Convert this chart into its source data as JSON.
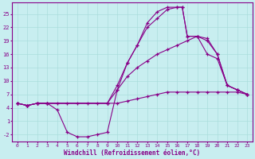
{
  "background_color": "#c8eef0",
  "line_color": "#880088",
  "xlabel": "Windchill (Refroidissement éolien,°C)",
  "xlim": [
    -0.5,
    23.5
  ],
  "ylim": [
    -3.5,
    27.5
  ],
  "xticks": [
    0,
    1,
    2,
    3,
    4,
    5,
    6,
    7,
    8,
    9,
    10,
    11,
    12,
    13,
    14,
    15,
    16,
    17,
    18,
    19,
    20,
    21,
    22,
    23
  ],
  "yticks": [
    -2,
    1,
    4,
    7,
    10,
    13,
    16,
    19,
    22,
    25
  ],
  "grid_color": "#aadddd",
  "line1_x": [
    0,
    1,
    2,
    3,
    4,
    5,
    6,
    7,
    8,
    9,
    10,
    11,
    12,
    13,
    14,
    15,
    16,
    17,
    18,
    19,
    20,
    21,
    22,
    23
  ],
  "line1_y": [
    5,
    4.5,
    5,
    5,
    5,
    5,
    5,
    5,
    5,
    5,
    5,
    5.5,
    6,
    6.5,
    7,
    7.5,
    7.5,
    7.5,
    7.5,
    7.5,
    7.5,
    7.5,
    7.5,
    7
  ],
  "line2_x": [
    0,
    1,
    2,
    3,
    9,
    10,
    11,
    12,
    13,
    14,
    15,
    16,
    17,
    18,
    19,
    20,
    21,
    22,
    23
  ],
  "line2_y": [
    5,
    4.5,
    5,
    5,
    5,
    8,
    11,
    13,
    14.5,
    16,
    17,
    18,
    19,
    20,
    19,
    16,
    9,
    8,
    7
  ],
  "line3_x": [
    0,
    1,
    2,
    3,
    9,
    10,
    11,
    12,
    13,
    14,
    15,
    16,
    16.5,
    17,
    18,
    19,
    20,
    21,
    22,
    23
  ],
  "line3_y": [
    5,
    4.5,
    5,
    5,
    5,
    9,
    14,
    18,
    22,
    24,
    26,
    26.5,
    26.5,
    20,
    20,
    19.5,
    16,
    9,
    8,
    7
  ],
  "line4_x": [
    0,
    1,
    2,
    3,
    4,
    5,
    6,
    7,
    8,
    9,
    10,
    11,
    12,
    13,
    14,
    15,
    16,
    16.5,
    17,
    18,
    19,
    20,
    21,
    22,
    23
  ],
  "line4_y": [
    5,
    4.5,
    5,
    5,
    3.5,
    -1.5,
    -2.5,
    -2.5,
    -2,
    -1.5,
    8,
    14,
    18,
    23,
    25.5,
    26.5,
    26.5,
    26.5,
    20,
    20,
    16,
    15,
    9,
    8,
    7
  ]
}
